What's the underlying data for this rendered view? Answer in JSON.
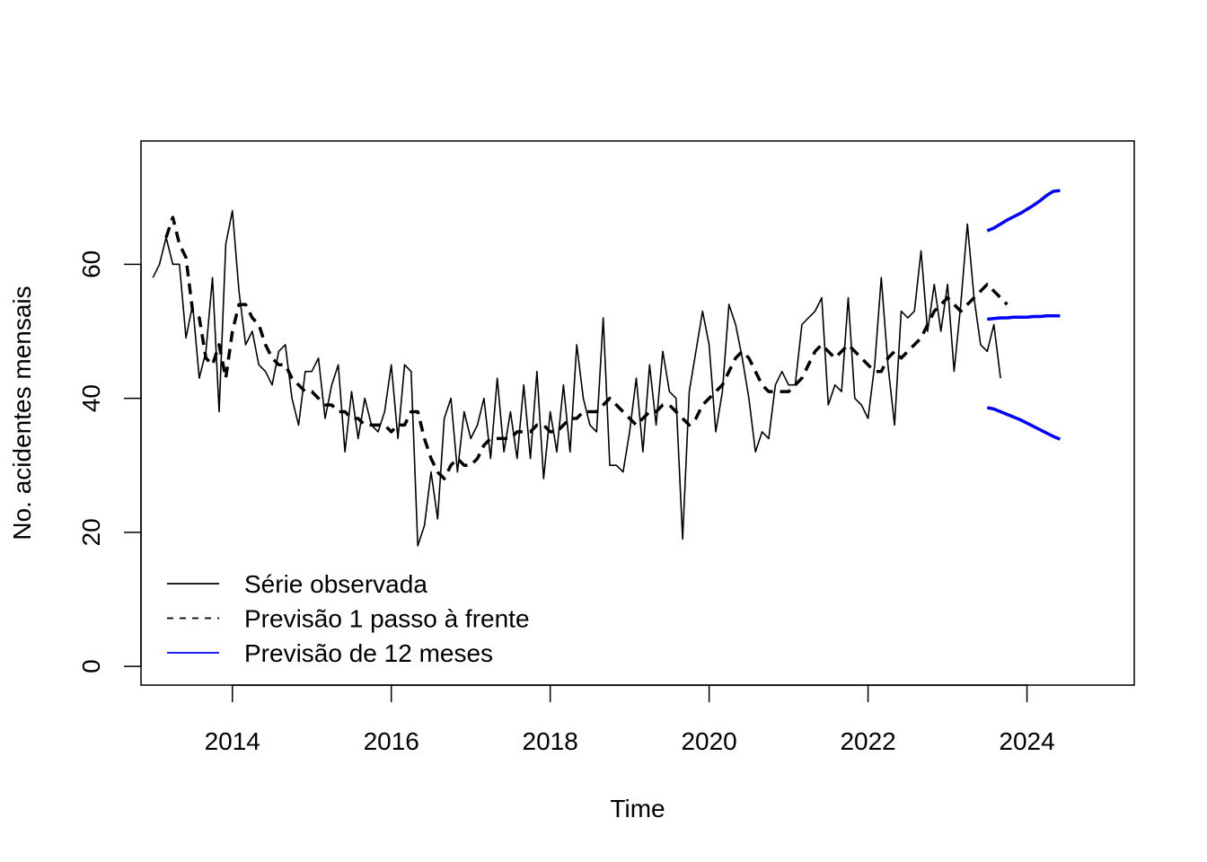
{
  "chart_data": {
    "type": "line",
    "xlabel": "Time",
    "ylabel": "No. acidentes mensais",
    "xlim": [
      2012.85,
      2025.35
    ],
    "ylim": [
      -2.8,
      78.4
    ],
    "xticks": [
      2014,
      2016,
      2018,
      2020,
      2022,
      2024
    ],
    "yticks": [
      0,
      20,
      40,
      60
    ],
    "grid": false,
    "legend_position": "bottom-left",
    "legend": [
      {
        "label": "Série observada",
        "color": "#000000",
        "style": "solid"
      },
      {
        "label": "Previsão 1 passo à frente",
        "color": "#000000",
        "style": "dashed"
      },
      {
        "label": "Previsão de 12 meses",
        "color": "#0000ff",
        "style": "solid"
      }
    ],
    "series": [
      {
        "key": "observed",
        "start": 2013.0,
        "step": 0.083333,
        "color": "#000000",
        "style": "solid",
        "values": [
          58,
          60,
          64,
          60,
          60,
          49,
          54,
          43,
          47,
          58,
          38,
          63,
          68,
          56,
          48,
          50,
          45,
          44,
          42,
          47,
          48,
          40,
          36,
          44,
          44,
          46,
          37,
          42,
          45,
          32,
          41,
          34,
          40,
          36,
          35,
          38,
          45,
          34,
          45,
          44,
          18,
          21,
          29,
          22,
          37,
          40,
          29,
          38,
          34,
          36,
          40,
          31,
          43,
          32,
          38,
          31,
          42,
          31,
          44,
          28,
          38,
          32,
          42,
          32,
          48,
          40,
          36,
          35,
          52,
          30,
          30,
          29,
          35,
          43,
          32,
          45,
          36,
          47,
          41,
          40,
          19,
          41,
          47,
          53,
          48,
          35,
          41,
          54,
          51,
          46,
          40,
          32,
          35,
          34,
          42,
          44,
          42,
          42,
          51,
          52,
          53,
          55,
          39,
          42,
          41,
          55,
          40,
          39,
          37,
          45,
          58,
          45,
          36,
          53,
          52,
          53,
          62,
          50,
          57,
          50,
          57,
          44,
          54,
          66,
          55,
          48,
          47,
          51,
          43
        ]
      },
      {
        "key": "one_step",
        "start": 2013.0,
        "step": 0.083333,
        "color": "#000000",
        "style": "dashed",
        "values": [
          null,
          null,
          64,
          67,
          63,
          61,
          53,
          52,
          46,
          45,
          48,
          43,
          50,
          54,
          54,
          52,
          51,
          48,
          46,
          45,
          45,
          43,
          42,
          41,
          41,
          40,
          39,
          39,
          38,
          38,
          37,
          37,
          36,
          36,
          36,
          36,
          35,
          36,
          36,
          38,
          38,
          34,
          31,
          29,
          28,
          30,
          31,
          30,
          30,
          31,
          33,
          34,
          34,
          34,
          34,
          35,
          35,
          35,
          36,
          36,
          35,
          35,
          36,
          37,
          37,
          38,
          38,
          38,
          39,
          40,
          39,
          38,
          37,
          36,
          37,
          38,
          38,
          39,
          39,
          38,
          37,
          36,
          37,
          39,
          40,
          41,
          42,
          44,
          46,
          47,
          46,
          44,
          42,
          41,
          41,
          41,
          41,
          42,
          43,
          45,
          47,
          48,
          47,
          46,
          47,
          48,
          47,
          46,
          45,
          44,
          44,
          46,
          47,
          46,
          47,
          48,
          49,
          51,
          53,
          54,
          55,
          54,
          53,
          54,
          55,
          56,
          57,
          56,
          55,
          54
        ]
      },
      {
        "key": "forecast_mean",
        "start": 2023.5,
        "step": 0.083333,
        "color": "#0000ff",
        "style": "solid",
        "values": [
          51.8,
          51.9,
          52.0,
          52.0,
          52.1,
          52.1,
          52.1,
          52.2,
          52.2,
          52.3,
          52.3,
          52.3
        ]
      },
      {
        "key": "forecast_upper",
        "start": 2023.5,
        "step": 0.083333,
        "color": "#0000ff",
        "style": "solid",
        "values": [
          65.0,
          65.4,
          66.0,
          66.6,
          67.1,
          67.6,
          68.2,
          68.8,
          69.5,
          70.3,
          70.9,
          71.0
        ]
      },
      {
        "key": "forecast_lower",
        "start": 2023.5,
        "step": 0.083333,
        "color": "#0000ff",
        "style": "solid",
        "values": [
          38.6,
          38.4,
          38.0,
          37.6,
          37.2,
          36.8,
          36.3,
          35.8,
          35.3,
          34.8,
          34.3,
          33.9
        ]
      }
    ]
  }
}
